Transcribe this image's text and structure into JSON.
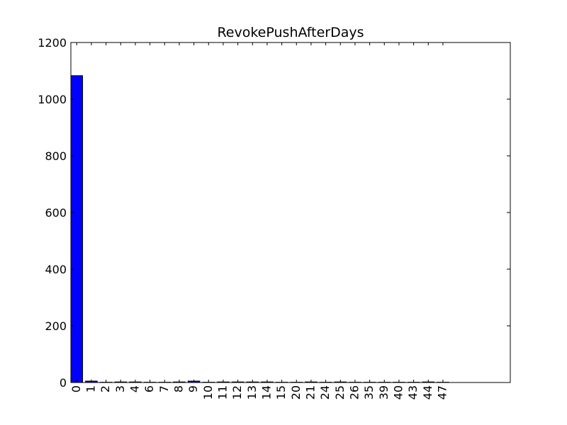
{
  "chart_data": {
    "type": "bar",
    "title": "RevokePushAfterDays",
    "xlabel": "",
    "ylabel": "",
    "categories": [
      "0",
      "1",
      "2",
      "3",
      "4",
      "6",
      "7",
      "8",
      "9",
      "10",
      "11",
      "12",
      "13",
      "14",
      "15",
      "20",
      "21",
      "24",
      "25",
      "26",
      "35",
      "39",
      "40",
      "43",
      "44",
      "47"
    ],
    "values": [
      1083,
      5,
      1,
      2,
      2,
      1,
      1,
      2,
      5,
      1,
      2,
      2,
      2,
      2,
      1,
      1,
      2,
      1,
      2,
      1,
      1,
      1,
      1,
      1,
      2,
      1
    ],
    "ylim": [
      0,
      1200
    ],
    "yticks": [
      0,
      200,
      400,
      600,
      800,
      1000,
      1200
    ],
    "grid": false,
    "colors": {
      "bar_fill": "#0000ff",
      "bar_edge": "#000000"
    }
  }
}
